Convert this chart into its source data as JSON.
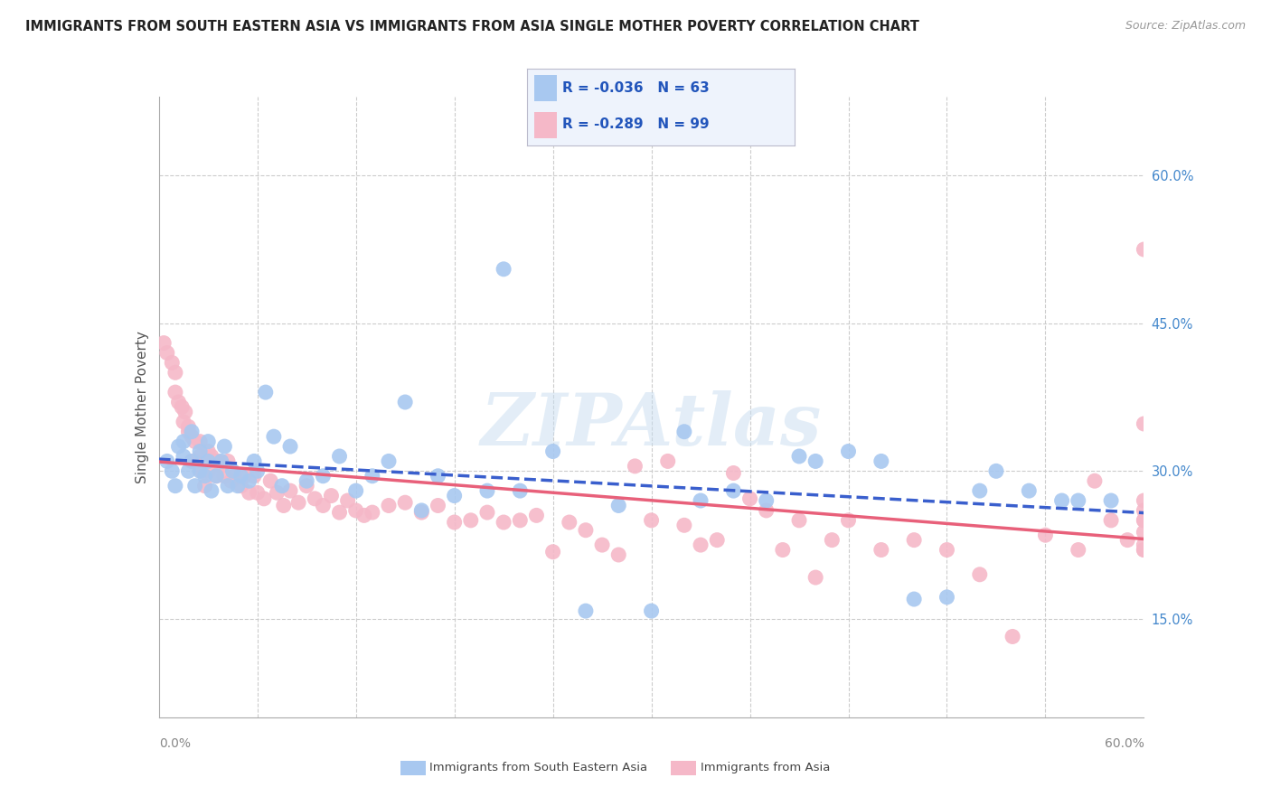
{
  "title": "IMMIGRANTS FROM SOUTH EASTERN ASIA VS IMMIGRANTS FROM ASIA SINGLE MOTHER POVERTY CORRELATION CHART",
  "source": "Source: ZipAtlas.com",
  "ylabel": "Single Mother Poverty",
  "right_yticklabels": [
    "15.0%",
    "30.0%",
    "45.0%",
    "60.0%"
  ],
  "right_yticks": [
    0.15,
    0.3,
    0.45,
    0.6
  ],
  "watermark": "ZIPAtlas",
  "series1_label": "Immigrants from South Eastern Asia",
  "series2_label": "Immigrants from Asia",
  "series1_R": -0.036,
  "series1_N": 63,
  "series2_R": -0.289,
  "series2_N": 99,
  "series1_color": "#a8c8f0",
  "series2_color": "#f5b8c8",
  "series1_line_color": "#3a5fcd",
  "series2_line_color": "#e8607a",
  "background_color": "#ffffff",
  "grid_color": "#cccccc",
  "xlim": [
    0.0,
    0.6
  ],
  "ylim": [
    0.05,
    0.68
  ],
  "blue_x": [
    0.005,
    0.008,
    0.01,
    0.012,
    0.015,
    0.015,
    0.018,
    0.02,
    0.02,
    0.022,
    0.025,
    0.025,
    0.028,
    0.03,
    0.03,
    0.032,
    0.035,
    0.038,
    0.04,
    0.042,
    0.045,
    0.048,
    0.05,
    0.055,
    0.058,
    0.06,
    0.065,
    0.07,
    0.075,
    0.08,
    0.09,
    0.1,
    0.11,
    0.12,
    0.13,
    0.14,
    0.15,
    0.16,
    0.17,
    0.18,
    0.2,
    0.21,
    0.22,
    0.24,
    0.26,
    0.28,
    0.3,
    0.32,
    0.33,
    0.35,
    0.37,
    0.39,
    0.4,
    0.42,
    0.44,
    0.46,
    0.48,
    0.5,
    0.51,
    0.53,
    0.55,
    0.56,
    0.58
  ],
  "blue_y": [
    0.31,
    0.3,
    0.285,
    0.325,
    0.33,
    0.315,
    0.3,
    0.34,
    0.31,
    0.285,
    0.32,
    0.3,
    0.295,
    0.33,
    0.31,
    0.28,
    0.295,
    0.31,
    0.325,
    0.285,
    0.3,
    0.285,
    0.295,
    0.29,
    0.31,
    0.3,
    0.38,
    0.335,
    0.285,
    0.325,
    0.29,
    0.295,
    0.315,
    0.28,
    0.295,
    0.31,
    0.37,
    0.26,
    0.295,
    0.275,
    0.28,
    0.505,
    0.28,
    0.32,
    0.158,
    0.265,
    0.158,
    0.34,
    0.27,
    0.28,
    0.27,
    0.315,
    0.31,
    0.32,
    0.31,
    0.17,
    0.172,
    0.28,
    0.3,
    0.28,
    0.27,
    0.27,
    0.27
  ],
  "pink_x": [
    0.003,
    0.005,
    0.008,
    0.01,
    0.01,
    0.012,
    0.014,
    0.015,
    0.016,
    0.018,
    0.018,
    0.02,
    0.02,
    0.022,
    0.022,
    0.025,
    0.025,
    0.026,
    0.028,
    0.03,
    0.03,
    0.032,
    0.034,
    0.035,
    0.036,
    0.038,
    0.04,
    0.042,
    0.044,
    0.046,
    0.05,
    0.052,
    0.055,
    0.058,
    0.06,
    0.064,
    0.068,
    0.072,
    0.076,
    0.08,
    0.085,
    0.09,
    0.095,
    0.1,
    0.105,
    0.11,
    0.115,
    0.12,
    0.125,
    0.13,
    0.14,
    0.15,
    0.16,
    0.17,
    0.18,
    0.19,
    0.2,
    0.21,
    0.22,
    0.23,
    0.24,
    0.25,
    0.26,
    0.27,
    0.28,
    0.29,
    0.3,
    0.31,
    0.32,
    0.33,
    0.34,
    0.35,
    0.36,
    0.37,
    0.38,
    0.39,
    0.4,
    0.41,
    0.42,
    0.44,
    0.46,
    0.48,
    0.5,
    0.52,
    0.54,
    0.56,
    0.57,
    0.58,
    0.59,
    0.6,
    0.6,
    0.6,
    0.6,
    0.6,
    0.6,
    0.6,
    0.6,
    0.6,
    0.6
  ],
  "pink_y": [
    0.43,
    0.42,
    0.41,
    0.4,
    0.38,
    0.37,
    0.365,
    0.35,
    0.36,
    0.345,
    0.34,
    0.335,
    0.31,
    0.33,
    0.31,
    0.33,
    0.315,
    0.3,
    0.285,
    0.32,
    0.3,
    0.315,
    0.31,
    0.295,
    0.31,
    0.305,
    0.295,
    0.31,
    0.29,
    0.295,
    0.285,
    0.295,
    0.278,
    0.295,
    0.278,
    0.272,
    0.29,
    0.278,
    0.265,
    0.28,
    0.268,
    0.285,
    0.272,
    0.265,
    0.275,
    0.258,
    0.27,
    0.26,
    0.255,
    0.258,
    0.265,
    0.268,
    0.258,
    0.265,
    0.248,
    0.25,
    0.258,
    0.248,
    0.25,
    0.255,
    0.218,
    0.248,
    0.24,
    0.225,
    0.215,
    0.305,
    0.25,
    0.31,
    0.245,
    0.225,
    0.23,
    0.298,
    0.272,
    0.26,
    0.22,
    0.25,
    0.192,
    0.23,
    0.25,
    0.22,
    0.23,
    0.22,
    0.195,
    0.132,
    0.235,
    0.22,
    0.29,
    0.25,
    0.23,
    0.25,
    0.26,
    0.525,
    0.22,
    0.25,
    0.22,
    0.238,
    0.225,
    0.27,
    0.348
  ]
}
